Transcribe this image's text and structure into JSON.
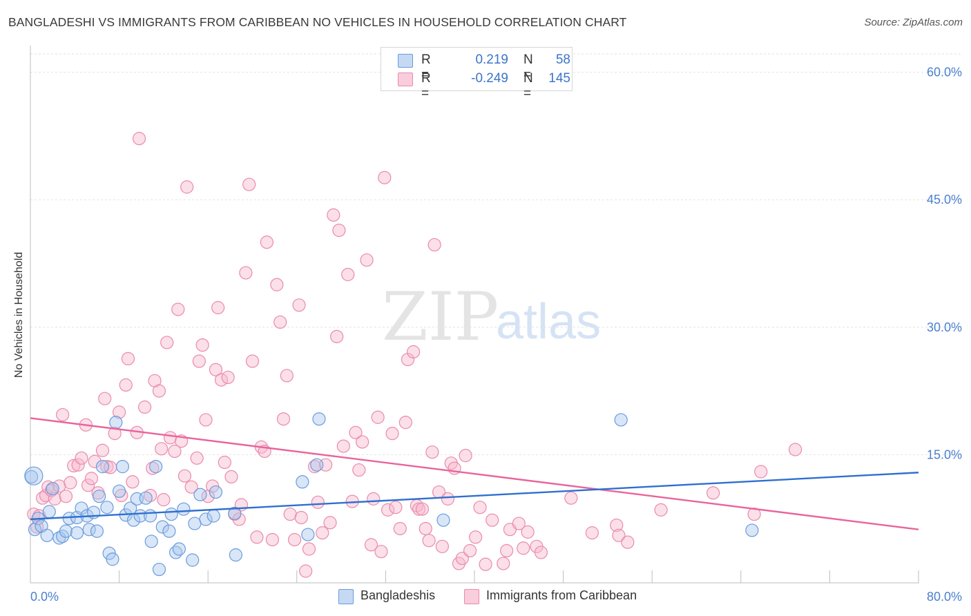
{
  "title": "BANGLADESHI VS IMMIGRANTS FROM CARIBBEAN NO VEHICLES IN HOUSEHOLD CORRELATION CHART",
  "source": "Source: ZipAtlas.com",
  "watermark_zip": "ZIP",
  "watermark_atlas": "atlas",
  "legend": {
    "rows": [
      {
        "r_label": "R =",
        "r_value": "0.219",
        "n_label": "N =",
        "n_value": "58"
      },
      {
        "r_label": "R =",
        "r_value": "-0.249",
        "n_label": "N =",
        "n_value": "145"
      }
    ],
    "bottom": [
      "Bangladeshis",
      "Immigrants from Caribbean"
    ]
  },
  "colors": {
    "blue_fill": "#a9c7ee",
    "blue_stroke": "#6a9bdc",
    "blue_line": "#2f6fcf",
    "pink_fill": "#f6b9ce",
    "pink_stroke": "#ea8aab",
    "pink_line": "#e8649a",
    "tick_text": "#4a7fcf",
    "grid": "#e2e2e2"
  },
  "chart_data": {
    "type": "scatter",
    "xlabel": "",
    "ylabel": "No Vehicles in Household",
    "xlim": [
      0,
      80
    ],
    "ylim": [
      0,
      62
    ],
    "x_tick_labels": [
      "0.0%",
      "80.0%"
    ],
    "y_ticks": [
      15,
      30,
      45,
      60
    ],
    "y_tick_labels": [
      "15.0%",
      "30.0%",
      "45.0%",
      "60.0%"
    ],
    "grid": true,
    "series": [
      {
        "name": "Bangladeshis",
        "r": 0.219,
        "n": 58,
        "trend": {
          "x": [
            0,
            80
          ],
          "y": [
            7.4,
            12.9
          ]
        },
        "points": [
          [
            0.1,
            12.4
          ],
          [
            0.4,
            6.2
          ],
          [
            0.7,
            7.5
          ],
          [
            1.0,
            6.6
          ],
          [
            1.5,
            5.5
          ],
          [
            1.7,
            8.3
          ],
          [
            2.0,
            11.0
          ],
          [
            2.6,
            5.2
          ],
          [
            2.9,
            5.4
          ],
          [
            3.2,
            6.0
          ],
          [
            3.5,
            7.5
          ],
          [
            4.2,
            7.6
          ],
          [
            4.2,
            5.8
          ],
          [
            4.6,
            8.7
          ],
          [
            5.1,
            7.8
          ],
          [
            5.3,
            6.2
          ],
          [
            5.7,
            8.2
          ],
          [
            6.0,
            6.0
          ],
          [
            6.2,
            10.1
          ],
          [
            6.5,
            13.6
          ],
          [
            6.9,
            8.8
          ],
          [
            7.1,
            3.4
          ],
          [
            7.4,
            2.7
          ],
          [
            7.7,
            18.8
          ],
          [
            8.0,
            10.7
          ],
          [
            8.3,
            13.6
          ],
          [
            8.6,
            7.9
          ],
          [
            9.0,
            8.7
          ],
          [
            9.3,
            7.3
          ],
          [
            9.6,
            9.8
          ],
          [
            9.9,
            7.8
          ],
          [
            10.4,
            9.9
          ],
          [
            10.8,
            7.8
          ],
          [
            10.9,
            4.8
          ],
          [
            11.3,
            13.6
          ],
          [
            11.6,
            1.5
          ],
          [
            11.9,
            6.5
          ],
          [
            12.5,
            6.0
          ],
          [
            12.7,
            8.0
          ],
          [
            13.1,
            3.5
          ],
          [
            13.4,
            3.9
          ],
          [
            13.8,
            8.6
          ],
          [
            14.6,
            2.6
          ],
          [
            14.8,
            6.9
          ],
          [
            15.3,
            10.3
          ],
          [
            15.8,
            7.4
          ],
          [
            16.5,
            7.8
          ],
          [
            16.7,
            10.6
          ],
          [
            18.4,
            8.1
          ],
          [
            18.5,
            3.2
          ],
          [
            24.5,
            11.8
          ],
          [
            25.0,
            5.6
          ],
          [
            25.8,
            13.8
          ],
          [
            26.0,
            19.2
          ],
          [
            37.2,
            7.3
          ],
          [
            53.2,
            19.1
          ],
          [
            65.0,
            6.1
          ],
          [
            0.3,
            12.5
          ]
        ]
      },
      {
        "name": "Immigrants from Caribbean",
        "r": -0.249,
        "n": 145,
        "trend": {
          "x": [
            0,
            80
          ],
          "y": [
            19.3,
            6.2
          ]
        },
        "points": [
          [
            0.3,
            8.0
          ],
          [
            0.6,
            6.5
          ],
          [
            0.8,
            7.8
          ],
          [
            1.1,
            9.9
          ],
          [
            1.4,
            10.2
          ],
          [
            1.6,
            11.2
          ],
          [
            1.9,
            10.8
          ],
          [
            2.2,
            9.8
          ],
          [
            2.6,
            11.3
          ],
          [
            2.9,
            19.7
          ],
          [
            3.2,
            10.1
          ],
          [
            3.6,
            11.7
          ],
          [
            3.9,
            13.7
          ],
          [
            4.3,
            13.8
          ],
          [
            4.6,
            14.6
          ],
          [
            5.0,
            18.5
          ],
          [
            5.2,
            11.4
          ],
          [
            5.5,
            12.2
          ],
          [
            5.8,
            14.2
          ],
          [
            6.1,
            10.5
          ],
          [
            6.5,
            15.5
          ],
          [
            6.7,
            21.6
          ],
          [
            6.9,
            13.6
          ],
          [
            7.2,
            13.5
          ],
          [
            7.6,
            17.5
          ],
          [
            8.0,
            20.0
          ],
          [
            8.2,
            10.2
          ],
          [
            8.6,
            23.2
          ],
          [
            8.8,
            26.3
          ],
          [
            9.2,
            11.8
          ],
          [
            9.6,
            17.6
          ],
          [
            9.8,
            52.2
          ],
          [
            10.3,
            20.6
          ],
          [
            10.8,
            10.2
          ],
          [
            11.0,
            13.4
          ],
          [
            11.2,
            23.7
          ],
          [
            11.6,
            22.5
          ],
          [
            11.8,
            15.7
          ],
          [
            12.0,
            9.7
          ],
          [
            12.3,
            28.2
          ],
          [
            12.6,
            17.0
          ],
          [
            13.0,
            15.4
          ],
          [
            13.3,
            32.1
          ],
          [
            13.6,
            16.6
          ],
          [
            13.9,
            12.5
          ],
          [
            14.1,
            46.5
          ],
          [
            14.5,
            11.2
          ],
          [
            15.0,
            14.6
          ],
          [
            15.2,
            26.0
          ],
          [
            15.5,
            27.9
          ],
          [
            15.8,
            19.1
          ],
          [
            16.0,
            10.1
          ],
          [
            16.4,
            11.3
          ],
          [
            16.7,
            25.0
          ],
          [
            16.9,
            32.3
          ],
          [
            17.2,
            23.8
          ],
          [
            17.5,
            14.1
          ],
          [
            17.8,
            24.1
          ],
          [
            18.1,
            12.4
          ],
          [
            18.4,
            8.0
          ],
          [
            18.8,
            7.4
          ],
          [
            19.0,
            9.1
          ],
          [
            19.4,
            36.4
          ],
          [
            19.7,
            46.8
          ],
          [
            20.0,
            26.0
          ],
          [
            20.4,
            5.3
          ],
          [
            20.8,
            15.9
          ],
          [
            21.1,
            15.4
          ],
          [
            21.3,
            40.0
          ],
          [
            21.8,
            5.0
          ],
          [
            22.2,
            35.0
          ],
          [
            22.5,
            30.6
          ],
          [
            22.8,
            19.2
          ],
          [
            23.1,
            24.3
          ],
          [
            23.4,
            8.0
          ],
          [
            23.8,
            5.0
          ],
          [
            24.2,
            32.6
          ],
          [
            24.4,
            7.6
          ],
          [
            24.8,
            1.3
          ],
          [
            25.1,
            3.9
          ],
          [
            25.6,
            13.6
          ],
          [
            25.9,
            9.4
          ],
          [
            26.3,
            5.8
          ],
          [
            26.6,
            13.8
          ],
          [
            27.0,
            7.0
          ],
          [
            27.3,
            43.2
          ],
          [
            27.6,
            28.9
          ],
          [
            27.8,
            41.4
          ],
          [
            28.2,
            16.0
          ],
          [
            28.6,
            36.2
          ],
          [
            29.0,
            9.5
          ],
          [
            29.3,
            17.6
          ],
          [
            29.6,
            13.2
          ],
          [
            29.9,
            16.5
          ],
          [
            30.3,
            37.9
          ],
          [
            30.7,
            4.4
          ],
          [
            30.9,
            9.8
          ],
          [
            31.3,
            19.4
          ],
          [
            31.6,
            3.6
          ],
          [
            31.9,
            47.6
          ],
          [
            32.2,
            8.5
          ],
          [
            32.6,
            17.5
          ],
          [
            32.9,
            8.8
          ],
          [
            33.3,
            6.3
          ],
          [
            33.8,
            18.8
          ],
          [
            34.0,
            26.2
          ],
          [
            34.5,
            27.1
          ],
          [
            34.8,
            9.0
          ],
          [
            35.0,
            8.6
          ],
          [
            35.3,
            8.6
          ],
          [
            35.6,
            6.3
          ],
          [
            35.9,
            4.9
          ],
          [
            36.2,
            15.3
          ],
          [
            36.4,
            39.7
          ],
          [
            36.8,
            10.6
          ],
          [
            37.1,
            4.2
          ],
          [
            37.6,
            9.8
          ],
          [
            37.9,
            14.0
          ],
          [
            38.2,
            13.4
          ],
          [
            38.6,
            2.2
          ],
          [
            38.9,
            2.8
          ],
          [
            39.2,
            14.9
          ],
          [
            39.6,
            3.7
          ],
          [
            40.1,
            5.3
          ],
          [
            40.5,
            8.8
          ],
          [
            41.0,
            2.1
          ],
          [
            41.6,
            7.3
          ],
          [
            42.6,
            2.2
          ],
          [
            42.9,
            3.7
          ],
          [
            43.2,
            6.2
          ],
          [
            44.0,
            6.9
          ],
          [
            44.4,
            4.0
          ],
          [
            44.8,
            5.9
          ],
          [
            45.6,
            4.2
          ],
          [
            46.0,
            3.5
          ],
          [
            48.7,
            9.9
          ],
          [
            50.6,
            5.8
          ],
          [
            52.8,
            6.7
          ],
          [
            53.0,
            5.5
          ],
          [
            53.8,
            4.7
          ],
          [
            56.8,
            8.5
          ],
          [
            61.5,
            10.5
          ],
          [
            65.2,
            8.0
          ],
          [
            65.8,
            13.0
          ],
          [
            68.9,
            15.6
          ]
        ]
      }
    ]
  }
}
